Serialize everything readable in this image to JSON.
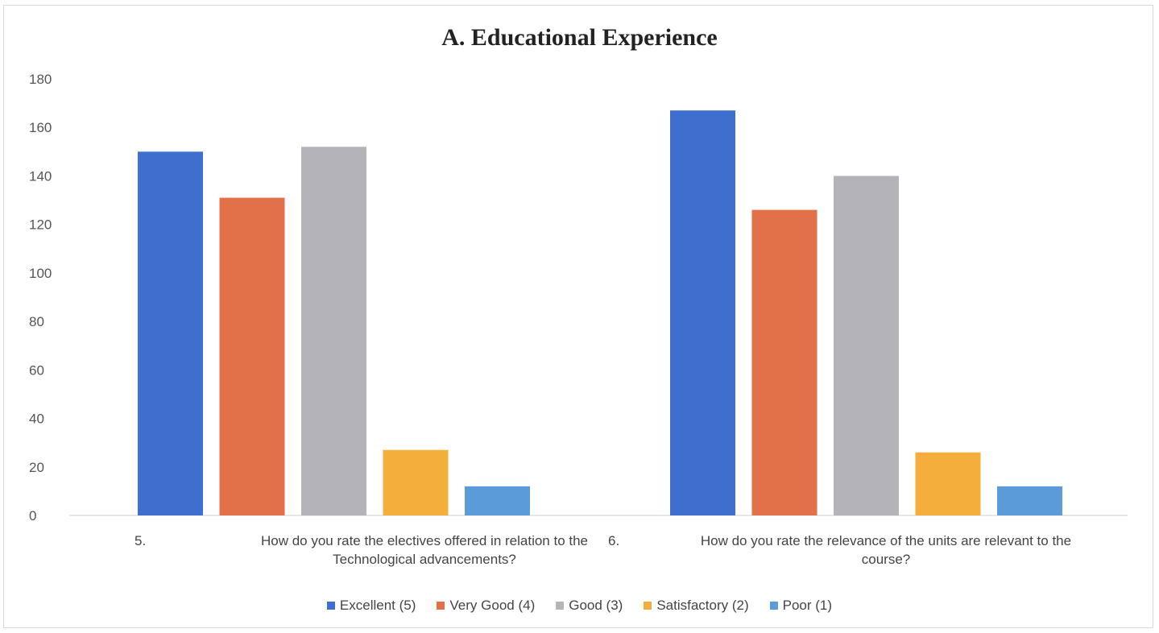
{
  "chart_data": {
    "type": "bar",
    "title": "A. Educational Experience",
    "xlabel": "",
    "ylabel": "",
    "ylim": [
      0,
      180
    ],
    "yticks": [
      0,
      20,
      40,
      60,
      80,
      100,
      120,
      140,
      160,
      180
    ],
    "grid": false,
    "legend_position": "bottom",
    "categories": [
      {
        "number": "5.",
        "line1": "How do you rate the electives offered in relation to the",
        "line2": "Technological advancements?"
      },
      {
        "number": "6.",
        "line1": "How do you rate the relevance of the units are relevant to the",
        "line2": "course?"
      }
    ],
    "series": [
      {
        "name": "Excellent (5)",
        "color": "#3f6fce",
        "values": [
          150,
          167
        ]
      },
      {
        "name": "Very Good (4)",
        "color": "#e2714a",
        "values": [
          131,
          126
        ]
      },
      {
        "name": "Good (3)",
        "color": "#b5b3ba",
        "values": [
          152,
          140
        ]
      },
      {
        "name": "Satisfactory (2)",
        "color": "#f4ae3c",
        "values": [
          27,
          26
        ]
      },
      {
        "name": "Poor (1)",
        "color": "#5b9bd9",
        "values": [
          12,
          12
        ]
      }
    ]
  }
}
